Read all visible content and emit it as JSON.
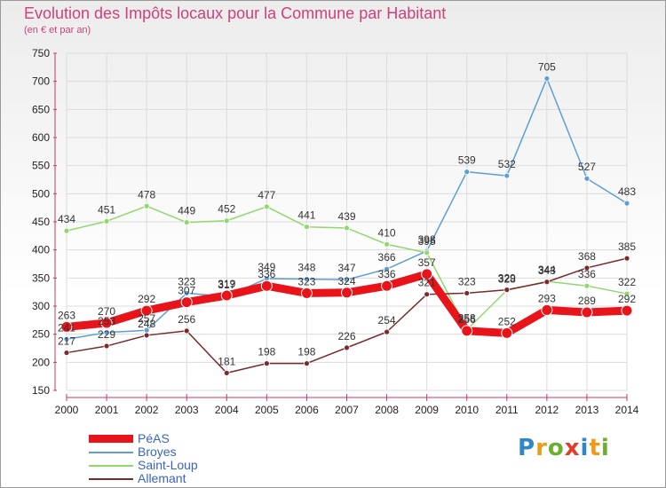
{
  "title": "Evolution des Impôts locaux pour la Commune par Habitant",
  "subtitle": "(en € et par an)",
  "logo": {
    "p": "P",
    "r": "r",
    "o": "o",
    "x": "x",
    "i": "i",
    "t": "t",
    "i2": "i"
  },
  "colors": {
    "title": "#d0407a",
    "axis_text": "#222222",
    "grid": "#dcdcdc"
  },
  "chart_data": {
    "type": "line",
    "x": [
      2000,
      2001,
      2002,
      2003,
      2004,
      2005,
      2006,
      2007,
      2008,
      2009,
      2010,
      2011,
      2012,
      2013,
      2014
    ],
    "ylim": [
      150,
      750
    ],
    "yticks": [
      150,
      200,
      250,
      300,
      350,
      400,
      450,
      500,
      550,
      600,
      650,
      700,
      750
    ],
    "grid": true,
    "legend_position": "bottom-left",
    "series": [
      {
        "name": "PéAS",
        "color": "#e8141a",
        "width": 9,
        "labels": true,
        "values": [
          263,
          270,
          292,
          307,
          319,
          336,
          323,
          324,
          336,
          357,
          256,
          252,
          293,
          289,
          292
        ]
      },
      {
        "name": "Broyes",
        "color": "#5d9fd3",
        "width": 1.5,
        "labels": true,
        "values": [
          241,
          253,
          257,
          323,
          317,
          349,
          348,
          347,
          366,
          398,
          539,
          532,
          705,
          527,
          483
        ]
      },
      {
        "name": "Saint-Loup",
        "color": "#90d86c",
        "width": 1.5,
        "labels": true,
        "values": [
          434,
          451,
          478,
          449,
          452,
          477,
          441,
          439,
          410,
          395,
          258,
          328,
          344,
          336,
          322
        ]
      },
      {
        "name": "Allemant",
        "color": "#7a2a2a",
        "width": 1.5,
        "labels": true,
        "values": [
          217,
          229,
          248,
          256,
          181,
          198,
          198,
          226,
          254,
          321,
          323,
          329,
          343,
          368,
          385
        ]
      }
    ]
  },
  "legend": [
    {
      "label": "PéAS",
      "color": "#e8141a",
      "thick": true
    },
    {
      "label": "Broyes",
      "color": "#5d9fd3",
      "thick": false
    },
    {
      "label": "Saint-Loup",
      "color": "#90d86c",
      "thick": false
    },
    {
      "label": "Allemant",
      "color": "#7a2a2a",
      "thick": false
    }
  ]
}
